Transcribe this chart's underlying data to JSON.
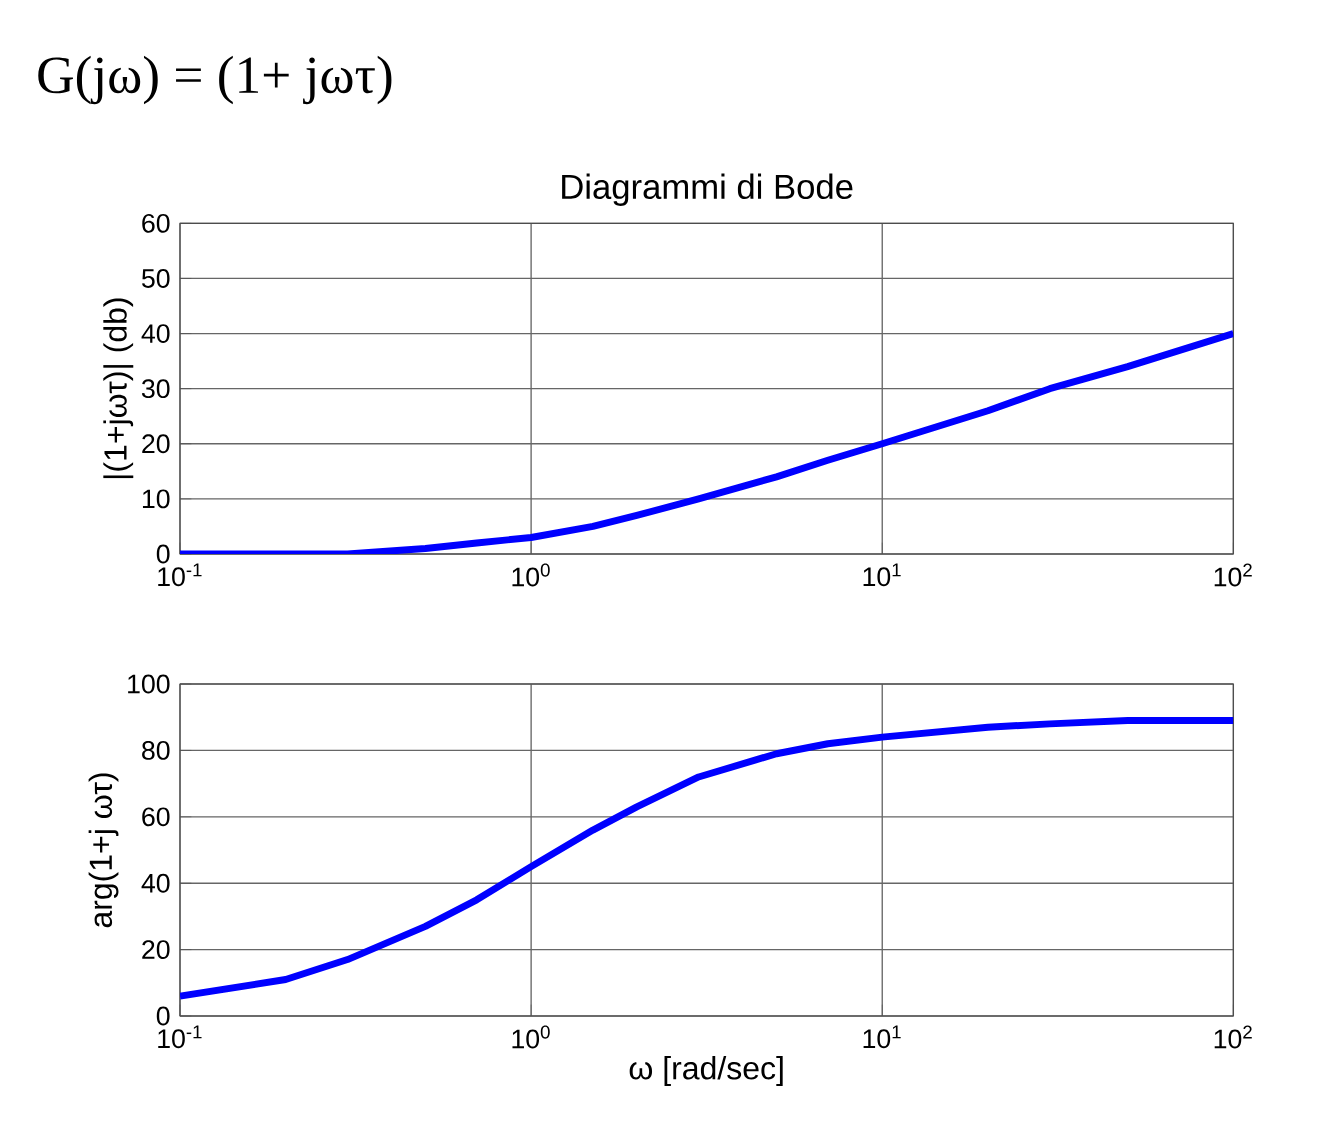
{
  "chart_data": [
    {
      "type": "line",
      "title": "Diagrammi di Bode",
      "annotations": [
        "G(jω) = (1+ jωτ)"
      ],
      "ylabel": "|(1+jωτ)|  (db)",
      "log": "x",
      "grid": true,
      "x": [
        0.1,
        0.2,
        0.3,
        0.5,
        0.7,
        1,
        1.5,
        2,
        3,
        5,
        7,
        10,
        20,
        30,
        50,
        100
      ],
      "series": [
        {
          "color": "#0000ff",
          "values": [
            0,
            0,
            0,
            1,
            2,
            3,
            5,
            7,
            10,
            14,
            17,
            20,
            26,
            30,
            34,
            40
          ]
        }
      ],
      "xlim": [
        0.1,
        100
      ],
      "ylim": [
        0,
        60
      ],
      "xticks": [
        {
          "value": 0.1,
          "label": "10$^{-1}$"
        },
        {
          "value": 1,
          "label": "10$^{0}$"
        },
        {
          "value": 10,
          "label": "10$^{1}$"
        },
        {
          "value": 100,
          "label": "10$^{2}$"
        }
      ],
      "yticks": [
        0,
        10,
        20,
        30,
        40,
        50,
        60
      ]
    },
    {
      "type": "line",
      "xlabel": "ω  [rad/sec]",
      "ylabel": "arg(1+j ωτ)",
      "log": "x",
      "grid": true,
      "x": [
        0.1,
        0.2,
        0.3,
        0.5,
        0.7,
        1,
        1.5,
        2,
        3,
        5,
        7,
        10,
        20,
        30,
        50,
        100
      ],
      "series": [
        {
          "color": "#0000ff",
          "values": [
            6,
            11,
            17,
            27,
            35,
            45,
            56,
            63,
            72,
            79,
            82,
            84,
            87,
            88,
            89,
            89
          ]
        }
      ],
      "xlim": [
        0.1,
        100
      ],
      "ylim": [
        0,
        100
      ],
      "xticks": [
        {
          "value": 0.1,
          "label": "10$^{-1}$"
        },
        {
          "value": 1,
          "label": "10$^{0}$"
        },
        {
          "value": 10,
          "label": "10$^{1}$"
        },
        {
          "value": 100,
          "label": "10$^{2}$"
        }
      ],
      "yticks": [
        0,
        20,
        40,
        60,
        80,
        100
      ]
    }
  ]
}
